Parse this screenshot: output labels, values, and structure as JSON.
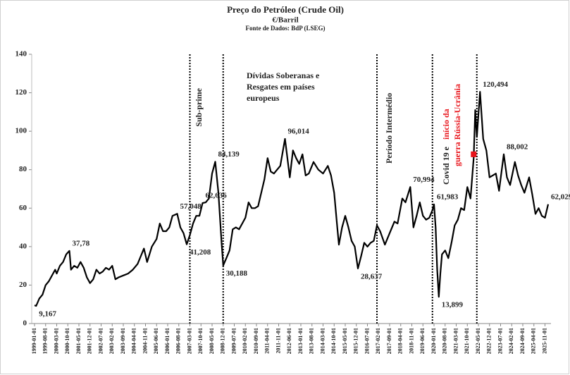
{
  "chart_data": {
    "type": "line",
    "title": "Preço do Petróleo (Crude Oil)",
    "subtitle": "€/Barril",
    "source": "Fonte de Dados: BdP (LSEG)",
    "ylim": [
      0,
      140
    ],
    "yticks": [
      0,
      20,
      40,
      60,
      80,
      100,
      120,
      140
    ],
    "xlim": [
      "1999-01-01",
      "2026-01-01"
    ],
    "xticks": [
      "1999-01-01",
      "1999-08-01",
      "2000-03-01",
      "2000-10-01",
      "2001-05-01",
      "2001-12-01",
      "2002-07-01",
      "2003-02-01",
      "2003-09-01",
      "2004-04-01",
      "2004-11-01",
      "2005-06-01",
      "2006-01-01",
      "2006-08-01",
      "2007-03-01",
      "2007-10-01",
      "2008-05-01",
      "2008-12-01",
      "2009-07-01",
      "2010-02-01",
      "2010-09-01",
      "2011-04-01",
      "2011-11-01",
      "2012-06-01",
      "2013-01-01",
      "2013-08-01",
      "2014-03-01",
      "2014-10-01",
      "2015-05-01",
      "2015-12-01",
      "2016-07-01",
      "2017-02-01",
      "2017-09-01",
      "2018-04-01",
      "2018-11-01",
      "2019-06-01",
      "2020-01-01",
      "2020-08-01",
      "2021-03-01",
      "2021-10-01",
      "2022-05-01",
      "2022-12-01",
      "2023-07-01",
      "2024-02-01",
      "2024-09-01",
      "2025-04-01",
      "2025-11-01"
    ],
    "series": [
      {
        "color": "#000000",
        "x": [
          "1999-01-01",
          "1999-02-01",
          "1999-04-01",
          "1999-06-01",
          "1999-08-01",
          "1999-10-01",
          "1999-12-01",
          "2000-02-01",
          "2000-03-01",
          "2000-05-01",
          "2000-07-01",
          "2000-09-01",
          "2000-11-01",
          "2000-12-01",
          "2001-02-01",
          "2001-04-01",
          "2001-06-01",
          "2001-08-01",
          "2001-10-01",
          "2001-12-01",
          "2002-02-01",
          "2002-04-01",
          "2002-06-01",
          "2002-08-01",
          "2002-10-01",
          "2002-12-01",
          "2003-02-01",
          "2003-04-01",
          "2003-06-01",
          "2003-09-01",
          "2003-12-01",
          "2004-03-01",
          "2004-06-01",
          "2004-08-01",
          "2004-10-01",
          "2004-12-01",
          "2005-03-01",
          "2005-06-01",
          "2005-08-01",
          "2005-10-01",
          "2005-12-01",
          "2006-02-01",
          "2006-04-01",
          "2006-07-01",
          "2006-09-01",
          "2006-11-01",
          "2007-01-01",
          "2007-03-01",
          "2007-05-01",
          "2007-07-01",
          "2007-09-01",
          "2007-11-01",
          "2008-01-01",
          "2008-03-01",
          "2008-05-01",
          "2008-07-01",
          "2008-09-01",
          "2008-11-01",
          "2008-12-01",
          "2009-02-01",
          "2009-04-01",
          "2009-06-01",
          "2009-08-01",
          "2009-10-01",
          "2009-12-01",
          "2010-02-01",
          "2010-04-01",
          "2010-06-01",
          "2010-08-01",
          "2010-10-01",
          "2010-12-01",
          "2011-02-01",
          "2011-04-01",
          "2011-06-01",
          "2011-08-01",
          "2011-10-01",
          "2011-12-01",
          "2012-03-01",
          "2012-06-01",
          "2012-08-01",
          "2012-10-01",
          "2012-12-01",
          "2013-02-01",
          "2013-04-01",
          "2013-06-01",
          "2013-09-01",
          "2013-12-01",
          "2014-03-01",
          "2014-06-01",
          "2014-08-01",
          "2014-10-01",
          "2014-12-01",
          "2015-01-01",
          "2015-03-01",
          "2015-05-01",
          "2015-07-01",
          "2015-09-01",
          "2015-11-01",
          "2016-01-01",
          "2016-03-01",
          "2016-05-01",
          "2016-07-01",
          "2016-09-01",
          "2016-11-01",
          "2017-01-01",
          "2017-03-01",
          "2017-06-01",
          "2017-09-01",
          "2017-12-01",
          "2018-02-01",
          "2018-05-01",
          "2018-07-01",
          "2018-10-01",
          "2018-12-01",
          "2019-02-01",
          "2019-04-01",
          "2019-06-01",
          "2019-08-01",
          "2019-10-01",
          "2019-12-01",
          "2020-01-01",
          "2020-02-01",
          "2020-03-01",
          "2020-04-01",
          "2020-05-01",
          "2020-06-01",
          "2020-08-01",
          "2020-10-01",
          "2020-12-01",
          "2021-02-01",
          "2021-04-01",
          "2021-06-01",
          "2021-08-01",
          "2021-10-01",
          "2021-12-01",
          "2022-02-01",
          "2022-03-01",
          "2022-04-01",
          "2022-06-01",
          "2022-08-01",
          "2022-10-01",
          "2022-12-01",
          "2023-02-01",
          "2023-04-01",
          "2023-06-01",
          "2023-09-01",
          "2023-11-01",
          "2024-01-01",
          "2024-04-01",
          "2024-06-01",
          "2024-08-01",
          "2024-10-01",
          "2025-01-01",
          "2025-03-01",
          "2025-05-01",
          "2025-07-01",
          "2025-09-01",
          "2025-11-01",
          "2026-01-01"
        ],
        "values": [
          9.5,
          9.167,
          13,
          15,
          20,
          22,
          25,
          28,
          26,
          30,
          32,
          36,
          37.78,
          28,
          30,
          29,
          32,
          29,
          24,
          21,
          23,
          28,
          26,
          27,
          29,
          28,
          30,
          23,
          24,
          25,
          26,
          28,
          31,
          35,
          39,
          32,
          40,
          44,
          52,
          48,
          48,
          50,
          56,
          57.048,
          50,
          47,
          41.208,
          46,
          52,
          56,
          56,
          62.636,
          63,
          65,
          78,
          84.139,
          68,
          42,
          30.188,
          34,
          38,
          49,
          50,
          49,
          52,
          55,
          63,
          60,
          60,
          61,
          68,
          75,
          86,
          79,
          78,
          80,
          82,
          96.014,
          76,
          90,
          86,
          83,
          88,
          77,
          78,
          84,
          80,
          78,
          82,
          77,
          68,
          50,
          41,
          50,
          56,
          50,
          43,
          40,
          28.637,
          35,
          42,
          40,
          42,
          43,
          51,
          48,
          41,
          47,
          53,
          52,
          65,
          63,
          70.994,
          50,
          56,
          63,
          56,
          54,
          55,
          59,
          61.983,
          50,
          28,
          13.899,
          26,
          36,
          38,
          34,
          42,
          51,
          54,
          60,
          59,
          71,
          65,
          86,
          111,
          97,
          120.494,
          96,
          90,
          76,
          77,
          78,
          69,
          88.002,
          76,
          72,
          84,
          77,
          72,
          68,
          76,
          67,
          57,
          60,
          56,
          55,
          62.029
        ],
        "value_labels": [
          null,
          "9,167",
          null,
          null,
          null,
          null,
          null,
          null,
          null,
          null,
          null,
          null,
          "37,78",
          null,
          null,
          null,
          null,
          null,
          null,
          null,
          null,
          null,
          null,
          null,
          null,
          null,
          null,
          null,
          null,
          null,
          null,
          null,
          null,
          null,
          null,
          null,
          null,
          null,
          null,
          null,
          null,
          null,
          null,
          "57,048",
          null,
          null,
          "41,208",
          null,
          null,
          null,
          null,
          "62,636",
          null,
          null,
          null,
          "84,139",
          null,
          null,
          "30,188",
          null,
          null,
          null,
          null,
          null,
          null,
          null,
          null,
          null,
          null,
          null,
          null,
          null,
          null,
          null,
          null,
          null,
          null,
          "96,014",
          null,
          null,
          null,
          null,
          null,
          null,
          null,
          null,
          null,
          null,
          null,
          null,
          null,
          null,
          null,
          null,
          null,
          null,
          null,
          null,
          "28,637",
          null,
          null,
          null,
          null,
          null,
          null,
          null,
          null,
          null,
          null,
          null,
          null,
          null,
          "70,994",
          null,
          null,
          null,
          null,
          null,
          null,
          null,
          "61,983",
          null,
          null,
          "13,899",
          null,
          null,
          null,
          null,
          null,
          null,
          null,
          null,
          null,
          null,
          null,
          null,
          null,
          null,
          "120,494",
          null,
          null,
          null,
          null,
          null,
          null,
          "88,002",
          null,
          null,
          null,
          null,
          null,
          null,
          null,
          null,
          null,
          null,
          null,
          null,
          "62,029"
        ]
      }
    ],
    "highlight": {
      "x": "2022-02-01",
      "value": 88,
      "color": "#e8141b"
    },
    "event_lines": [
      "2007-03-01",
      "2008-12-01",
      "2017-01-01",
      "2019-12-01",
      "2022-04-01"
    ],
    "annotations": [
      "Sub-prime",
      "Dívidas Soberanas e",
      "Resgates em países",
      "europeus",
      "Período Intermédio"
    ],
    "covid_annotation": {
      "black": "Covid 19 e",
      "red_1": "início da",
      "red_2": "guerra Rússia-Ucrânia",
      "red_color": "#e8141b"
    }
  }
}
